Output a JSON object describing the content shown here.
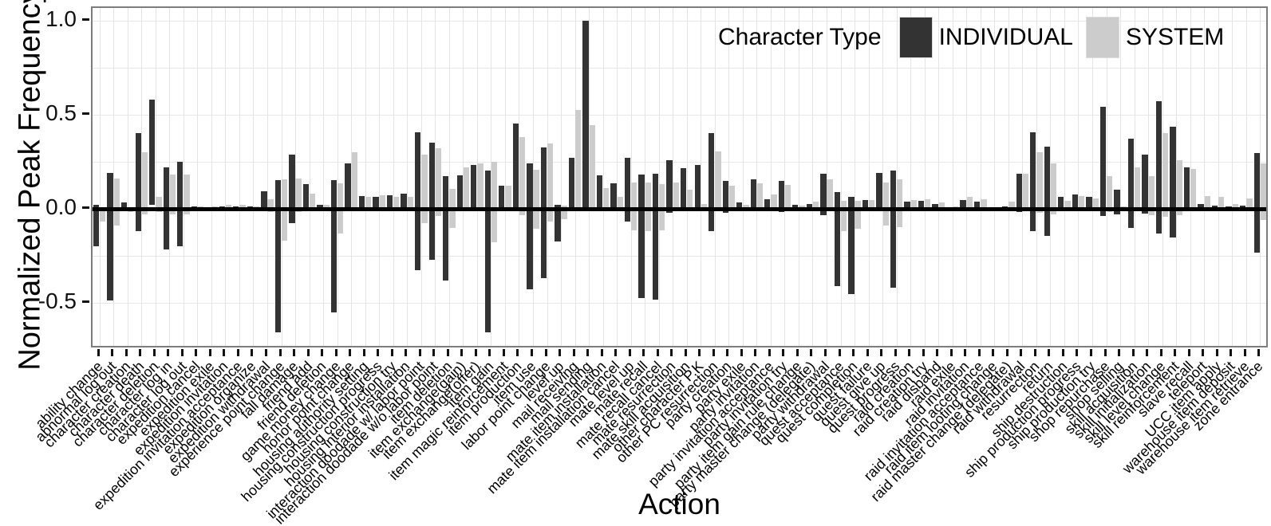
{
  "figure": {
    "y_axis": {
      "title": "Normalized Peak Frequency",
      "ticks": [
        "1.0",
        "0.5",
        "0.0",
        "-0.5"
      ],
      "tick_values": [
        1.0,
        0.5,
        0.0,
        -0.5
      ]
    },
    "x_axis": {
      "title": "Action"
    },
    "legend": {
      "title": "Character Type",
      "items": [
        {
          "label": "INDIVIDUAL",
          "color": "#333333"
        },
        {
          "label": "SYSTEM",
          "color": "#cccccc"
        }
      ]
    },
    "colors": {
      "individual": "#333333",
      "system": "#cccccc",
      "zero_line": "#000000",
      "grid": "#e4e4e4",
      "panel_border": "#7d7d7d"
    }
  },
  "chart_data": {
    "type": "bar",
    "note": "Dodged range bars per action; each bar spans [min,max] of normalized peak frequency",
    "ylim": [
      -0.7,
      1.05
    ],
    "hgridlines": [
      1.0,
      0.75,
      0.5,
      0.25,
      -0.25,
      -0.5
    ],
    "series_names": [
      "INDIVIDUAL",
      "SYSTEM"
    ],
    "categories": [
      {
        "label": "ability change",
        "individual": [
          -0.2,
          0.02
        ],
        "system": [
          -0.07,
          0
        ]
      },
      {
        "label": "abnormal log out",
        "individual": [
          -0.49,
          0.19
        ],
        "system": [
          -0.09,
          0.16
        ]
      },
      {
        "label": "character creation",
        "individual": [
          0,
          0.03
        ],
        "system": [
          -0.02,
          0
        ]
      },
      {
        "label": "character death",
        "individual": [
          -0.12,
          0.4
        ],
        "system": [
          -0.03,
          0.3
        ]
      },
      {
        "label": "character deletion",
        "individual": [
          0.02,
          0.58
        ],
        "system": [
          -0.02,
          0.06
        ]
      },
      {
        "label": "character log in",
        "individual": [
          -0.22,
          0.22
        ],
        "system": [
          -0.03,
          0.18
        ]
      },
      {
        "label": "character log out",
        "individual": [
          -0.2,
          0.25
        ],
        "system": [
          -0.03,
          0.18
        ]
      },
      {
        "label": "expedition cancel",
        "individual": [
          -0.01,
          0.01
        ],
        "system": [
          0,
          0.01
        ]
      },
      {
        "label": "expedition exile",
        "individual": [
          0,
          0.005
        ],
        "system": [
          0,
          0.01
        ]
      },
      {
        "label": "expedition invitation",
        "individual": [
          0,
          0.01
        ],
        "system": [
          0,
          0.02
        ]
      },
      {
        "label": "expedition invitation acceptance",
        "individual": [
          0,
          0.01
        ],
        "system": [
          0,
          0.02
        ]
      },
      {
        "label": "expedition organize",
        "individual": [
          0,
          0.01
        ],
        "system": [
          0,
          0.01
        ]
      },
      {
        "label": "expedition withdrawal",
        "individual": [
          0,
          0.09
        ],
        "system": [
          -0.02,
          0.05
        ]
      },
      {
        "label": "experience point change",
        "individual": [
          -0.66,
          0.15
        ],
        "system": [
          -0.17,
          0.155
        ]
      },
      {
        "label": "fall damage",
        "individual": [
          -0.08,
          0.285
        ],
        "system": [
          -0.02,
          0.16
        ]
      },
      {
        "label": "friend add",
        "individual": [
          0,
          0.13
        ],
        "system": [
          0,
          0.08
        ]
      },
      {
        "label": "friend deletion",
        "individual": [
          0,
          0.02
        ],
        "system": [
          0,
          0.02
        ]
      },
      {
        "label": "game money change",
        "individual": [
          -0.555,
          0.15
        ],
        "system": [
          -0.135,
          0.135
        ]
      },
      {
        "label": "honor point change",
        "individual": [
          0,
          0.24
        ],
        "system": [
          0,
          0.3
        ]
      },
      {
        "label": "housing authority setting",
        "individual": [
          0,
          0.065
        ],
        "system": [
          0,
          0.06
        ]
      },
      {
        "label": "housing construction progress",
        "individual": [
          0,
          0.06
        ],
        "system": [
          0,
          0.07
        ]
      },
      {
        "label": "housing construction try",
        "individual": [
          0,
          0.07
        ],
        "system": [
          0,
          0.06
        ]
      },
      {
        "label": "housing interior installation",
        "individual": [
          0,
          0.08
        ],
        "system": [
          0,
          0.06
        ]
      },
      {
        "label": "interaction doodade w/ labor point",
        "individual": [
          -0.33,
          0.405
        ],
        "system": [
          -0.08,
          0.285
        ]
      },
      {
        "label": "interaction doodade w/o labor point",
        "individual": [
          -0.275,
          0.35
        ],
        "system": [
          -0.04,
          0.32
        ]
      },
      {
        "label": "item deletion",
        "individual": [
          -0.385,
          0.17
        ],
        "system": [
          -0.105,
          0.105
        ]
      },
      {
        "label": "item exchange(gain)",
        "individual": [
          0,
          0.175
        ],
        "system": [
          0,
          0.22
        ]
      },
      {
        "label": "item exchange(offer)",
        "individual": [
          0,
          0.23
        ],
        "system": [
          0,
          0.24
        ]
      },
      {
        "label": "item gain",
        "individual": [
          -0.66,
          0.2
        ],
        "system": [
          -0.18,
          0.25
        ]
      },
      {
        "label": "item magic reinforcement",
        "individual": [
          0,
          0.12
        ],
        "system": [
          0,
          0.12
        ]
      },
      {
        "label": "item production",
        "individual": [
          0,
          0.45
        ],
        "system": [
          -0.035,
          0.38
        ]
      },
      {
        "label": "item use",
        "individual": [
          -0.43,
          0.24
        ],
        "system": [
          -0.11,
          0.205
        ]
      },
      {
        "label": "labor point change",
        "individual": [
          -0.37,
          0.325
        ],
        "system": [
          -0.07,
          0.345
        ]
      },
      {
        "label": "level up",
        "individual": [
          -0.175,
          0.02
        ],
        "system": [
          -0.055,
          0.015
        ]
      },
      {
        "label": "mail receiving",
        "individual": [
          0,
          0.27
        ],
        "system": [
          0,
          0.525
        ]
      },
      {
        "label": "mail sending",
        "individual": [
          0,
          1.0
        ],
        "system": [
          0,
          0.445
        ]
      },
      {
        "label": "mate item installation",
        "individual": [
          0,
          0.175
        ],
        "system": [
          0,
          0.11
        ]
      },
      {
        "label": "mate item installation cancel",
        "individual": [
          0,
          0.135
        ],
        "system": [
          0,
          0.06
        ]
      },
      {
        "label": "mate level up",
        "individual": [
          -0.07,
          0.27
        ],
        "system": [
          -0.115,
          0.14
        ]
      },
      {
        "label": "mate recall",
        "individual": [
          -0.475,
          0.18
        ],
        "system": [
          -0.12,
          0.14
        ]
      },
      {
        "label": "mate recall cancel",
        "individual": [
          -0.485,
          0.185
        ],
        "system": [
          -0.115,
          0.13
        ]
      },
      {
        "label": "mate resurrection",
        "individual": [
          -0.025,
          0.255
        ],
        "system": [
          0,
          0.14
        ]
      },
      {
        "label": "mate skill acquisition",
        "individual": [
          0,
          0.215
        ],
        "system": [
          0,
          0.1
        ]
      },
      {
        "label": "other character P.K",
        "individual": [
          0,
          0.23
        ],
        "system": [
          -0.015,
          0.025
        ]
      },
      {
        "label": "other PC resurrection",
        "individual": [
          -0.12,
          0.4
        ],
        "system": [
          -0.015,
          0.305
        ]
      },
      {
        "label": "party creation",
        "individual": [
          -0.025,
          0.145
        ],
        "system": [
          0,
          0.12
        ]
      },
      {
        "label": "party exile",
        "individual": [
          0,
          0.03
        ],
        "system": [
          -0.01,
          0.02
        ]
      },
      {
        "label": "party invitation",
        "individual": [
          -0.01,
          0.155
        ],
        "system": [
          0,
          0.135
        ]
      },
      {
        "label": "party invitation acceptance",
        "individual": [
          0,
          0.05
        ],
        "system": [
          0,
          0.075
        ]
      },
      {
        "label": "party invitation try",
        "individual": [
          -0.02,
          0.145
        ],
        "system": [
          0,
          0.125
        ]
      },
      {
        "label": "party item gain rule change",
        "individual": [
          0,
          0.02
        ],
        "system": [
          0,
          0.015
        ]
      },
      {
        "label": "party master change (delegate)",
        "individual": [
          0,
          0.025
        ],
        "system": [
          0,
          0.035
        ]
      },
      {
        "label": "party withdrawal",
        "individual": [
          -0.035,
          0.185
        ],
        "system": [
          0,
          0.155
        ]
      },
      {
        "label": "quest acceptance",
        "individual": [
          -0.415,
          0.085
        ],
        "system": [
          -0.12,
          0.04
        ]
      },
      {
        "label": "quest completion",
        "individual": [
          -0.455,
          0.06
        ],
        "system": [
          -0.11,
          0.04
        ]
      },
      {
        "label": "quest failure",
        "individual": [
          0,
          0.045
        ],
        "system": [
          0,
          0.045
        ]
      },
      {
        "label": "quest give up",
        "individual": [
          -0.015,
          0.19
        ],
        "system": [
          -0.09,
          0.14
        ]
      },
      {
        "label": "quest progress",
        "individual": [
          -0.42,
          0.2
        ],
        "system": [
          -0.1,
          0.155
        ]
      },
      {
        "label": "raid creation",
        "individual": [
          0,
          0.035
        ],
        "system": [
          0,
          0.045
        ]
      },
      {
        "label": "raid creation try",
        "individual": [
          0,
          0.04
        ],
        "system": [
          0,
          0.05
        ]
      },
      {
        "label": "raid disband",
        "individual": [
          0,
          0.025
        ],
        "system": [
          0,
          0.03
        ]
      },
      {
        "label": "raid exile",
        "individual": [
          0,
          0
        ],
        "system": [
          0,
          0.01
        ]
      },
      {
        "label": "raid invitation",
        "individual": [
          0,
          0.045
        ],
        "system": [
          0,
          0.06
        ]
      },
      {
        "label": "raid invitation acceptance",
        "individual": [
          0,
          0.035
        ],
        "system": [
          0,
          0.05
        ]
      },
      {
        "label": "raid item looting change",
        "individual": [
          0,
          0.005
        ],
        "system": [
          0,
          0.005
        ]
      },
      {
        "label": "raid master change (delegate)",
        "individual": [
          0,
          0.01
        ],
        "system": [
          -0.015,
          0.035
        ]
      },
      {
        "label": "raid withdrawal",
        "individual": [
          -0.02,
          0.185
        ],
        "system": [
          0,
          0.185
        ]
      },
      {
        "label": "resurrection",
        "individual": [
          -0.12,
          0.405
        ],
        "system": [
          -0.025,
          0.3
        ]
      },
      {
        "label": "return",
        "individual": [
          -0.145,
          0.33
        ],
        "system": [
          -0.03,
          0.24
        ]
      },
      {
        "label": "ship destruction",
        "individual": [
          0,
          0.06
        ],
        "system": [
          0,
          0.04
        ]
      },
      {
        "label": "ship production progress",
        "individual": [
          0,
          0.075
        ],
        "system": [
          0,
          0.065
        ]
      },
      {
        "label": "ship production try",
        "individual": [
          0,
          0.06
        ],
        "system": [
          0,
          0.055
        ]
      },
      {
        "label": "shop repurchase",
        "individual": [
          -0.04,
          0.54
        ],
        "system": [
          -0.02,
          0.17
        ]
      },
      {
        "label": "shop selling",
        "individual": [
          -0.03,
          0.1
        ],
        "system": [
          0,
          0.01
        ]
      },
      {
        "label": "skill acquisition",
        "individual": [
          -0.105,
          0.37
        ],
        "system": [
          -0.015,
          0.22
        ]
      },
      {
        "label": "skill initialization",
        "individual": [
          -0.03,
          0.285
        ],
        "system": [
          -0.035,
          0.17
        ]
      },
      {
        "label": "skill level change",
        "individual": [
          -0.135,
          0.57
        ],
        "system": [
          -0.045,
          0.4
        ]
      },
      {
        "label": "skill reinforcement",
        "individual": [
          -0.155,
          0.435
        ],
        "system": [
          -0.035,
          0.255
        ]
      },
      {
        "label": "slave recall",
        "individual": [
          -0.01,
          0.22
        ],
        "system": [
          0,
          0.21
        ]
      },
      {
        "label": "teleport",
        "individual": [
          0,
          0.025
        ],
        "system": [
          0,
          0.065
        ]
      },
      {
        "label": "UCC item apply",
        "individual": [
          0,
          0.015
        ],
        "system": [
          0,
          0.06
        ]
      },
      {
        "label": "warehouse item deposit",
        "individual": [
          0,
          0.01
        ],
        "system": [
          0,
          0.025
        ]
      },
      {
        "label": "warehouse item retrieve",
        "individual": [
          0,
          0.015
        ],
        "system": [
          0,
          0.055
        ]
      },
      {
        "label": "zone entrance",
        "individual": [
          -0.235,
          0.295
        ],
        "system": [
          -0.06,
          0.24
        ]
      }
    ]
  }
}
